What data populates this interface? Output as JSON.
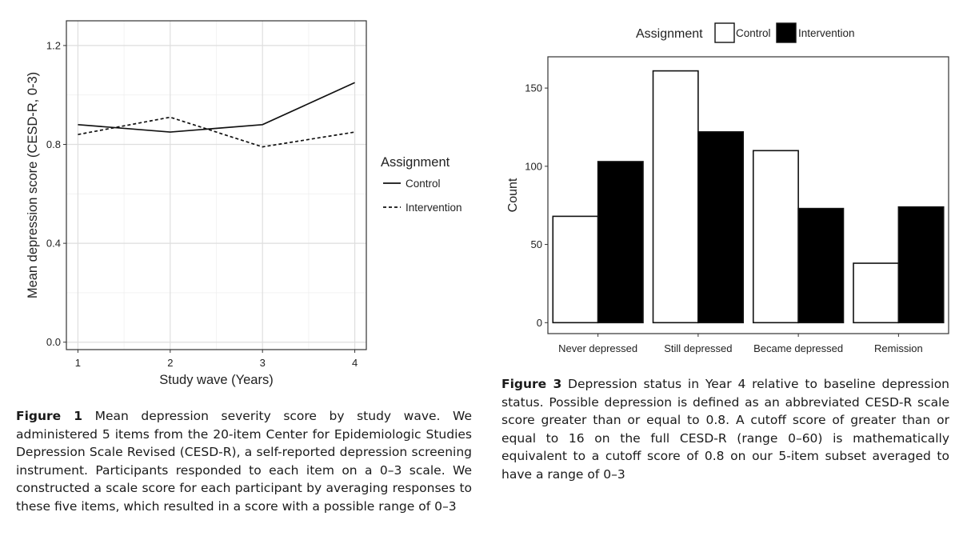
{
  "chart_data": [
    {
      "type": "line",
      "title": "",
      "xlabel": "Study wave (Years)",
      "ylabel": "Mean depression score (CESD-R, 0-3)",
      "x": [
        1,
        2,
        3,
        4
      ],
      "xticks": [
        "1",
        "2",
        "3",
        "4"
      ],
      "yticks": [
        "0.0",
        "0.4",
        "0.8",
        "1.2"
      ],
      "ylim": [
        -0.03,
        1.3
      ],
      "grid": true,
      "legend": {
        "title": "Assignment",
        "position": "right"
      },
      "series": [
        {
          "name": "Control",
          "style": "solid",
          "values": [
            0.88,
            0.85,
            0.88,
            1.05
          ]
        },
        {
          "name": "Intervention",
          "style": "dashed",
          "values": [
            0.84,
            0.91,
            0.79,
            0.85
          ]
        }
      ]
    },
    {
      "type": "bar",
      "title": "",
      "xlabel": "",
      "ylabel": "Count",
      "categories": [
        "Never depressed",
        "Still depressed",
        "Became depressed",
        "Remission"
      ],
      "yticks": [
        "0",
        "50",
        "100",
        "150"
      ],
      "ylim": [
        -7,
        170
      ],
      "grid": false,
      "legend": {
        "title": "Assignment",
        "position": "top"
      },
      "series": [
        {
          "name": "Control",
          "color": "#ffffff",
          "values": [
            68,
            161,
            110,
            38
          ]
        },
        {
          "name": "Intervention",
          "color": "#000000",
          "values": [
            103,
            122,
            73,
            74
          ]
        }
      ]
    }
  ],
  "captions": {
    "fig1_label": "Figure 1",
    "fig1_text": " Mean depression severity score by study wave. We administered 5 items from the 20-item Center for Epidemiologic Studies Depression Scale Revised (CESD-R), a self-reported depression screening instrument. Participants responded to each item on a 0–3 scale. We constructed a scale score for each participant by averaging responses to these five items, which resulted in a score with a possible range of 0–3",
    "fig3_label": "Figure 3",
    "fig3_text": " Depression status in Year 4 relative to baseline depression status. Possible depression is defined as an abbreviated CESD-R scale score greater than or equal to 0.8. A cutoff score of greater than or equal to 16 on the full CESD-R (range 0–60) is mathematically equivalent to a cutoff score of 0.8 on our 5-item subset averaged to have a range of 0–3"
  }
}
